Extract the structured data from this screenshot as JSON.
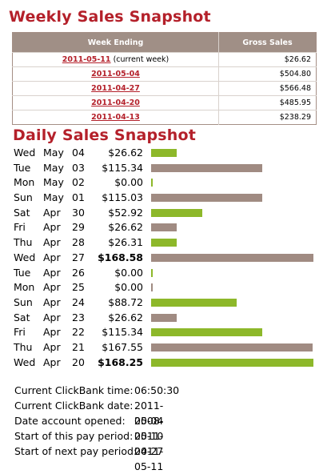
{
  "weekly": {
    "title": "Weekly Sales Snapshot",
    "headers": [
      "Week Ending",
      "Gross Sales"
    ],
    "rows": [
      {
        "date": "2011-05-11",
        "note": " (current week)",
        "sales": "$26.62"
      },
      {
        "date": "2011-05-04",
        "note": "",
        "sales": "$504.80"
      },
      {
        "date": "2011-04-27",
        "note": "",
        "sales": "$566.48"
      },
      {
        "date": "2011-04-20",
        "note": "",
        "sales": "$485.95"
      },
      {
        "date": "2011-04-13",
        "note": "",
        "sales": "$238.29"
      }
    ]
  },
  "daily": {
    "title": "Daily Sales Snapshot",
    "colors": {
      "green": "#8db82a",
      "brown": "#a08b82"
    },
    "max_value": 168.58,
    "rows": [
      {
        "dow": "Wed",
        "mon": "May",
        "day": "04",
        "amount": "$26.62",
        "value": 26.62,
        "color": "green",
        "bold": false
      },
      {
        "dow": "Tue",
        "mon": "May",
        "day": "03",
        "amount": "$115.34",
        "value": 115.34,
        "color": "brown",
        "bold": false
      },
      {
        "dow": "Mon",
        "mon": "May",
        "day": "02",
        "amount": "$0.00",
        "value": 0,
        "color": "green",
        "bold": false
      },
      {
        "dow": "Sun",
        "mon": "May",
        "day": "01",
        "amount": "$115.03",
        "value": 115.03,
        "color": "brown",
        "bold": false
      },
      {
        "dow": "Sat",
        "mon": "Apr",
        "day": "30",
        "amount": "$52.92",
        "value": 52.92,
        "color": "green",
        "bold": false
      },
      {
        "dow": "Fri",
        "mon": "Apr",
        "day": "29",
        "amount": "$26.62",
        "value": 26.62,
        "color": "brown",
        "bold": false
      },
      {
        "dow": "Thu",
        "mon": "Apr",
        "day": "28",
        "amount": "$26.31",
        "value": 26.31,
        "color": "green",
        "bold": false
      },
      {
        "dow": "Wed",
        "mon": "Apr",
        "day": "27",
        "amount": "$168.58",
        "value": 168.58,
        "color": "brown",
        "bold": true
      },
      {
        "dow": "Tue",
        "mon": "Apr",
        "day": "26",
        "amount": "$0.00",
        "value": 0,
        "color": "green",
        "bold": false
      },
      {
        "dow": "Mon",
        "mon": "Apr",
        "day": "25",
        "amount": "$0.00",
        "value": 0,
        "color": "brown",
        "bold": false
      },
      {
        "dow": "Sun",
        "mon": "Apr",
        "day": "24",
        "amount": "$88.72",
        "value": 88.72,
        "color": "green",
        "bold": false
      },
      {
        "dow": "Sat",
        "mon": "Apr",
        "day": "23",
        "amount": "$26.62",
        "value": 26.62,
        "color": "brown",
        "bold": false
      },
      {
        "dow": "Fri",
        "mon": "Apr",
        "day": "22",
        "amount": "$115.34",
        "value": 115.34,
        "color": "green",
        "bold": false
      },
      {
        "dow": "Thu",
        "mon": "Apr",
        "day": "21",
        "amount": "$167.55",
        "value": 167.55,
        "color": "brown",
        "bold": false
      },
      {
        "dow": "Wed",
        "mon": "Apr",
        "day": "20",
        "amount": "$168.25",
        "value": 168.25,
        "color": "green",
        "bold": true
      }
    ]
  },
  "info": [
    {
      "label": "Current ClickBank time:",
      "value": "06:50:30"
    },
    {
      "label": "Current ClickBank date:",
      "value": "2011-05-04"
    },
    {
      "label": "Date account opened:",
      "value": "2008-05-10"
    },
    {
      "label": "Start of this pay period:",
      "value": "2011-04-27"
    },
    {
      "label": "Start of next pay period:",
      "value": "2011-05-11"
    }
  ]
}
